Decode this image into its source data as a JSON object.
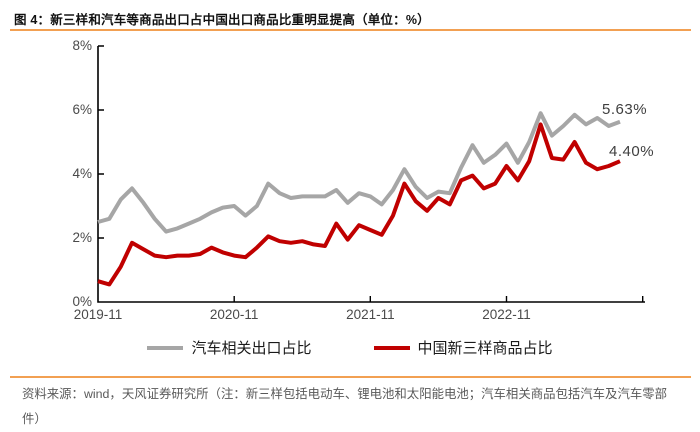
{
  "figure": {
    "title": "图 4：新三样和汽车等商品出口占中国出口商品比重明显提高（单位：%）",
    "source_note": "资料来源：wind，天风证券研究所（注：新三样包括电动车、锂电池和太阳能电池；汽车相关商品包括汽车及汽车零部件）",
    "accent_color": "#F2A052"
  },
  "chart_data": {
    "type": "line",
    "title": "新三样和汽车等商品出口占中国出口商品比重",
    "unit": "%",
    "grid": false,
    "legend_position": "bottom",
    "ylim": [
      0,
      8
    ],
    "yticks": [
      "8%",
      "6%",
      "4%",
      "2%",
      "0%"
    ],
    "xticks": [
      "2019-11",
      "2020-11",
      "2021-11",
      "2022-11"
    ],
    "x": [
      "2019-11",
      "2019-12",
      "2020-01",
      "2020-02",
      "2020-03",
      "2020-04",
      "2020-05",
      "2020-06",
      "2020-07",
      "2020-08",
      "2020-09",
      "2020-10",
      "2020-11",
      "2020-12",
      "2021-01",
      "2021-02",
      "2021-03",
      "2021-04",
      "2021-05",
      "2021-06",
      "2021-07",
      "2021-08",
      "2021-09",
      "2021-10",
      "2021-11",
      "2021-12",
      "2022-01",
      "2022-02",
      "2022-03",
      "2022-04",
      "2022-05",
      "2022-06",
      "2022-07",
      "2022-08",
      "2022-09",
      "2022-10",
      "2022-11",
      "2022-12",
      "2023-01",
      "2023-02",
      "2023-03",
      "2023-04",
      "2023-05",
      "2023-06",
      "2023-07",
      "2023-08",
      "2023-09"
    ],
    "series": [
      {
        "name": "汽车相关出口占比",
        "color": "#A6A6A6",
        "end_label": "5.63%",
        "values": [
          2.5,
          2.6,
          3.2,
          3.55,
          3.1,
          2.6,
          2.2,
          2.3,
          2.45,
          2.6,
          2.8,
          2.95,
          3.0,
          2.7,
          3.0,
          3.7,
          3.4,
          3.25,
          3.3,
          3.3,
          3.3,
          3.5,
          3.1,
          3.4,
          3.3,
          3.05,
          3.5,
          4.15,
          3.6,
          3.25,
          3.45,
          3.4,
          4.2,
          4.9,
          4.35,
          4.6,
          4.95,
          4.35,
          5.0,
          5.9,
          5.2,
          5.5,
          5.85,
          5.55,
          5.75,
          5.5,
          5.63
        ]
      },
      {
        "name": "中国新三样商品占比",
        "color": "#C00000",
        "end_label": "4.40%",
        "values": [
          0.65,
          0.55,
          1.1,
          1.85,
          1.65,
          1.45,
          1.4,
          1.45,
          1.45,
          1.5,
          1.7,
          1.55,
          1.45,
          1.4,
          1.7,
          2.05,
          1.9,
          1.85,
          1.9,
          1.8,
          1.75,
          2.45,
          1.95,
          2.4,
          2.25,
          2.1,
          2.7,
          3.7,
          3.15,
          2.85,
          3.25,
          3.05,
          3.8,
          3.95,
          3.55,
          3.7,
          4.25,
          3.8,
          4.4,
          5.55,
          4.5,
          4.45,
          5.0,
          4.35,
          4.15,
          4.25,
          4.4
        ]
      }
    ]
  }
}
